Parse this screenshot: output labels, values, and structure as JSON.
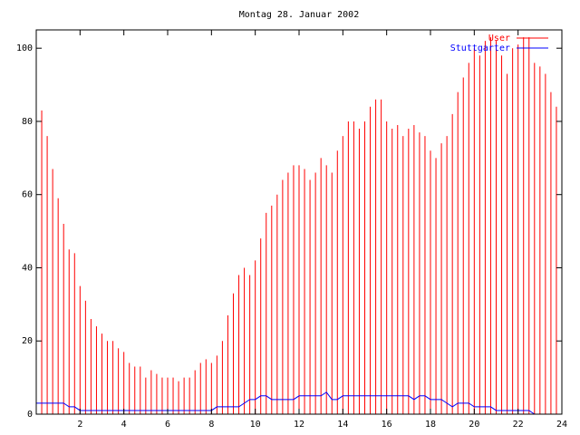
{
  "chart_data": {
    "type": "impulses",
    "title": "Montag 28. Januar 2002",
    "x": [
      0,
      0.25,
      0.5,
      0.75,
      1,
      1.25,
      1.5,
      1.75,
      2,
      2.25,
      2.5,
      2.75,
      3,
      3.25,
      3.5,
      3.75,
      4,
      4.25,
      4.5,
      4.75,
      5,
      5.25,
      5.5,
      5.75,
      6,
      6.25,
      6.5,
      6.75,
      7,
      7.25,
      7.5,
      7.75,
      8,
      8.25,
      8.5,
      8.75,
      9,
      9.25,
      9.5,
      9.75,
      10,
      10.25,
      10.5,
      10.75,
      11,
      11.25,
      11.5,
      11.75,
      12,
      12.25,
      12.5,
      12.75,
      13,
      13.25,
      13.5,
      13.75,
      14,
      14.25,
      14.5,
      14.75,
      15,
      15.25,
      15.5,
      15.75,
      16,
      16.25,
      16.5,
      16.75,
      17,
      17.25,
      17.5,
      17.75,
      18,
      18.25,
      18.5,
      18.75,
      19,
      19.25,
      19.5,
      19.75,
      20,
      20.25,
      20.5,
      20.75,
      21,
      21.25,
      21.5,
      21.75,
      22,
      22.25,
      22.5,
      22.75,
      23,
      23.25,
      23.5,
      23.75
    ],
    "series": [
      {
        "name": "User",
        "color": "#ff0000",
        "style": "impulses",
        "values": [
          92,
          83,
          76,
          67,
          59,
          52,
          45,
          44,
          35,
          31,
          26,
          24,
          22,
          20,
          20,
          18,
          17,
          14,
          13,
          13,
          10,
          12,
          11,
          10,
          10,
          10,
          9,
          10,
          10,
          12,
          14,
          15,
          14,
          16,
          20,
          27,
          33,
          38,
          40,
          38,
          42,
          48,
          55,
          57,
          60,
          64,
          66,
          68,
          68,
          67,
          64,
          66,
          70,
          68,
          66,
          72,
          76,
          80,
          80,
          78,
          80,
          84,
          86,
          86,
          80,
          78,
          79,
          76,
          78,
          79,
          77,
          76,
          72,
          70,
          74,
          76,
          82,
          88,
          92,
          96,
          100,
          98,
          102,
          103,
          102,
          98,
          93,
          100,
          101,
          103,
          103,
          96,
          95,
          93,
          88,
          84
        ]
      },
      {
        "name": "Stuttgarter",
        "color": "#0000ff",
        "style": "lines",
        "values": [
          3,
          3,
          3,
          3,
          3,
          3,
          2,
          2,
          1,
          1,
          1,
          1,
          1,
          1,
          1,
          1,
          1,
          1,
          1,
          1,
          1,
          1,
          1,
          1,
          1,
          1,
          1,
          1,
          1,
          1,
          1,
          1,
          1,
          2,
          2,
          2,
          2,
          2,
          3,
          4,
          4,
          5,
          5,
          4,
          4,
          4,
          4,
          4,
          5,
          5,
          5,
          5,
          5,
          6,
          4,
          4,
          5,
          5,
          5,
          5,
          5,
          5,
          5,
          5,
          5,
          5,
          5,
          5,
          5,
          4,
          5,
          5,
          4,
          4,
          4,
          3,
          2,
          3,
          3,
          3,
          2,
          2,
          2,
          2,
          1,
          1,
          1,
          1,
          1,
          1,
          1,
          0,
          0,
          0,
          0,
          0
        ]
      }
    ],
    "xlim": [
      0,
      24
    ],
    "xticks": [
      2,
      4,
      6,
      8,
      10,
      12,
      14,
      16,
      18,
      20,
      22,
      24
    ],
    "ylim": [
      0,
      105
    ],
    "yticks": [
      0,
      20,
      40,
      60,
      80,
      100
    ],
    "legend": "upper right"
  }
}
